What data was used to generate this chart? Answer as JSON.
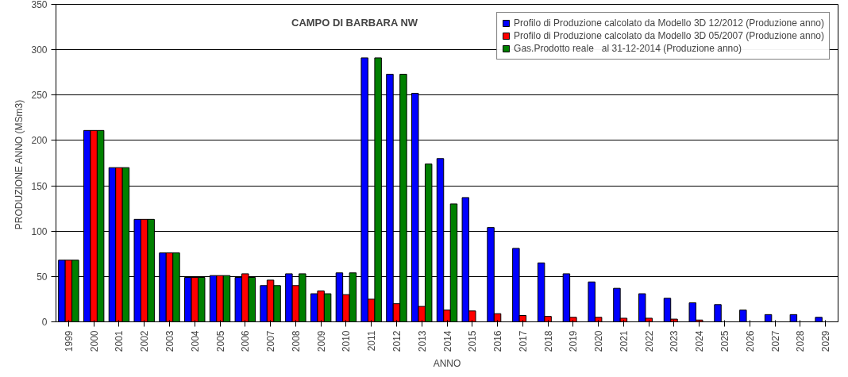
{
  "chart_data": {
    "type": "bar",
    "title": "CAMPO DI BARBARA  NW",
    "xlabel": "ANNO",
    "ylabel": "PRODUZIONE  ANNO (MSm3)",
    "categories": [
      "1999",
      "2000",
      "2001",
      "2002",
      "2003",
      "2004",
      "2005",
      "2006",
      "2007",
      "2008",
      "2009",
      "2010",
      "2011",
      "2012",
      "2013",
      "2014",
      "2015",
      "2016",
      "2017",
      "2018",
      "2019",
      "2020",
      "2021",
      "2022",
      "2023",
      "2024",
      "2025",
      "2026",
      "2027",
      "2028",
      "2029"
    ],
    "series": [
      {
        "name": "Profilo di Produzione calcolato da Modello 3D 12/2012 (Produzione anno)",
        "color": "#0000ff",
        "values": [
          68,
          211,
          170,
          113,
          76,
          49,
          51,
          49,
          40,
          53,
          31,
          54,
          291,
          273,
          252,
          180,
          137,
          104,
          81,
          65,
          53,
          44,
          37,
          31,
          26,
          21,
          19,
          13,
          8,
          8,
          5
        ]
      },
      {
        "name": "Profilo di Produzione calcolato da Modello 3D 05/2007 (Produzione anno)",
        "color": "#ff0000",
        "values": [
          68,
          211,
          170,
          113,
          76,
          49,
          51,
          53,
          46,
          40,
          34,
          30,
          25,
          20,
          17,
          13,
          12,
          9,
          7,
          6,
          5,
          5,
          4,
          4,
          3,
          2,
          null,
          null,
          null,
          null,
          null
        ]
      },
      {
        "name": "Gas.Prodotto reale   al 31-12-2014 (Produzione anno)",
        "color": "#008000",
        "values": [
          68,
          211,
          170,
          113,
          76,
          49,
          51,
          49,
          40,
          53,
          31,
          54,
          291,
          273,
          174,
          130,
          null,
          null,
          null,
          null,
          null,
          null,
          null,
          null,
          null,
          null,
          null,
          null,
          null,
          null,
          null
        ]
      }
    ],
    "ylim": [
      0,
      350
    ],
    "yticks": [
      0,
      50,
      100,
      150,
      200,
      250,
      300,
      350
    ],
    "grid": "y",
    "legend": "top right"
  }
}
